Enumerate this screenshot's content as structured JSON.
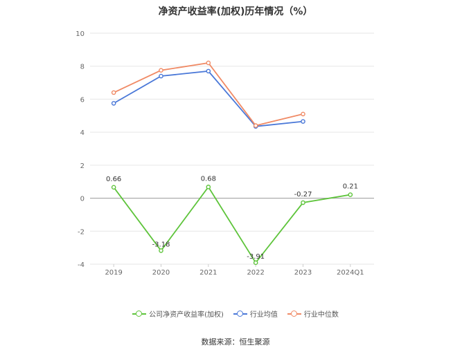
{
  "chart_data": {
    "type": "line",
    "title": "净资产收益率(加权)历年情况（%）",
    "categories": [
      "2019",
      "2020",
      "2021",
      "2022",
      "2023",
      "2024Q1"
    ],
    "ylim": [
      -4,
      10
    ],
    "yticks": [
      -4,
      -2,
      0,
      2,
      4,
      6,
      8,
      10
    ],
    "grid": true,
    "legend_position": "bottom",
    "series": [
      {
        "name": "公司净资产收益率(加权)",
        "color": "#5ec43b",
        "values": [
          0.66,
          -3.18,
          0.68,
          -3.91,
          -0.27,
          0.21
        ],
        "labels": [
          "0.66",
          "-3.18",
          "0.68",
          "-3.91",
          "-0.27",
          "0.21"
        ]
      },
      {
        "name": "行业均值",
        "color": "#4a78d8",
        "values": [
          5.75,
          7.4,
          7.7,
          4.35,
          4.65,
          null
        ]
      },
      {
        "name": "行业中位数",
        "color": "#f08a65",
        "values": [
          6.4,
          7.75,
          8.2,
          4.4,
          5.1,
          null
        ]
      }
    ]
  },
  "source_text": "数据来源：恒生聚源"
}
